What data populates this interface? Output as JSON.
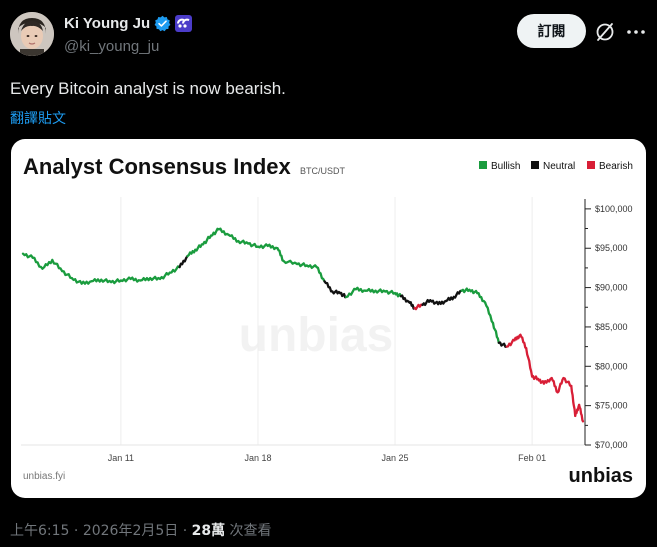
{
  "author": {
    "name": "Ki Young Ju",
    "handle": "@ki_young_ju"
  },
  "actions": {
    "subscribe_label": "訂閱"
  },
  "tweet": {
    "text": "Every Bitcoin analyst is now bearish.",
    "translate_label": "翻譯貼文"
  },
  "meta": {
    "time": "上午6:15",
    "sep1": " · ",
    "date": "2026年2月5日",
    "sep2": " · ",
    "views": "28萬",
    "views_label": " 次查看"
  },
  "colors": {
    "bullish": "#1a9c3e",
    "neutral": "#111111",
    "bearish": "#d81e36",
    "link": "#1d9bf0"
  },
  "chart_data": {
    "type": "line",
    "title": "Analyst Consensus Index",
    "subtitle": "BTC/USDT",
    "watermark": "unbias",
    "source": "unbias.fyi",
    "brand": "unbias",
    "legend": [
      {
        "name": "Bullish",
        "color": "#1a9c3e"
      },
      {
        "name": "Neutral",
        "color": "#111111"
      },
      {
        "name": "Bearish",
        "color": "#d81e36"
      }
    ],
    "y_ticks": [
      100000,
      95000,
      90000,
      85000,
      80000,
      75000,
      70000
    ],
    "y_tick_labels": [
      "$100,000",
      "$95,000",
      "$90,000",
      "$85,000",
      "$80,000",
      "$75,000",
      "$70,000"
    ],
    "ylim": [
      70000,
      101000
    ],
    "x_ticks": [
      "Jan 11",
      "Jan 18",
      "Jan 25",
      "Feb 01"
    ],
    "x_tick_days": [
      11,
      18,
      25,
      32
    ],
    "xlim": [
      5.9,
      34.7
    ],
    "series": [
      {
        "name": "BTC/USDT",
        "points": [
          [
            6.0,
            94300,
            "bullish"
          ],
          [
            6.5,
            93800,
            "bullish"
          ],
          [
            7.0,
            92400,
            "bullish"
          ],
          [
            7.5,
            93500,
            "bullish"
          ],
          [
            8.0,
            92100,
            "bullish"
          ],
          [
            8.5,
            91200,
            "bullish"
          ],
          [
            9.0,
            90500,
            "bullish"
          ],
          [
            9.5,
            90800,
            "bullish"
          ],
          [
            10.0,
            91000,
            "bullish"
          ],
          [
            10.5,
            90700,
            "bullish"
          ],
          [
            11.0,
            90900,
            "bullish"
          ],
          [
            11.5,
            91100,
            "bullish"
          ],
          [
            12.0,
            90900,
            "bullish"
          ],
          [
            12.5,
            91200,
            "bullish"
          ],
          [
            13.0,
            91100,
            "bullish"
          ],
          [
            13.5,
            91900,
            "bullish"
          ],
          [
            14.0,
            92600,
            "neutral"
          ],
          [
            14.4,
            94000,
            "bullish"
          ],
          [
            14.8,
            94800,
            "bullish"
          ],
          [
            15.2,
            95500,
            "bullish"
          ],
          [
            15.6,
            96600,
            "bullish"
          ],
          [
            16.0,
            97400,
            "bullish"
          ],
          [
            16.5,
            96700,
            "bullish"
          ],
          [
            17.0,
            95900,
            "bullish"
          ],
          [
            17.5,
            95600,
            "bullish"
          ],
          [
            18.0,
            95200,
            "bullish"
          ],
          [
            18.5,
            95300,
            "bullish"
          ],
          [
            19.0,
            95000,
            "bullish"
          ],
          [
            19.3,
            93400,
            "bullish"
          ],
          [
            20.0,
            93000,
            "bullish"
          ],
          [
            20.5,
            92800,
            "bullish"
          ],
          [
            21.0,
            92600,
            "bullish"
          ],
          [
            21.4,
            90800,
            "neutral"
          ],
          [
            21.8,
            89500,
            "neutral"
          ],
          [
            22.2,
            89300,
            "neutral"
          ],
          [
            22.5,
            88800,
            "bullish"
          ],
          [
            23.0,
            89800,
            "bullish"
          ],
          [
            23.5,
            89600,
            "bullish"
          ],
          [
            24.0,
            89600,
            "bullish"
          ],
          [
            24.5,
            89500,
            "bullish"
          ],
          [
            25.0,
            89300,
            "bullish"
          ],
          [
            25.3,
            88900,
            "neutral"
          ],
          [
            25.7,
            88200,
            "neutral"
          ],
          [
            26.0,
            87400,
            "bearish"
          ],
          [
            26.4,
            87800,
            "neutral"
          ],
          [
            26.8,
            88400,
            "neutral"
          ],
          [
            27.2,
            87900,
            "neutral"
          ],
          [
            27.6,
            88300,
            "neutral"
          ],
          [
            28.0,
            88800,
            "neutral"
          ],
          [
            28.4,
            89600,
            "bullish"
          ],
          [
            28.8,
            89700,
            "bullish"
          ],
          [
            29.2,
            89300,
            "bullish"
          ],
          [
            29.6,
            88100,
            "bullish"
          ],
          [
            30.0,
            85500,
            "bullish"
          ],
          [
            30.3,
            83000,
            "neutral"
          ],
          [
            30.7,
            82500,
            "bearish"
          ],
          [
            31.1,
            83300,
            "bearish"
          ],
          [
            31.4,
            84000,
            "bearish"
          ],
          [
            31.7,
            82300,
            "bearish"
          ],
          [
            32.0,
            78700,
            "bearish"
          ],
          [
            32.3,
            78400,
            "bearish"
          ],
          [
            32.6,
            77800,
            "bearish"
          ],
          [
            33.0,
            78500,
            "bearish"
          ],
          [
            33.3,
            76700,
            "bearish"
          ],
          [
            33.6,
            78500,
            "bearish"
          ],
          [
            34.0,
            77500,
            "bearish"
          ],
          [
            34.2,
            73700,
            "bearish"
          ],
          [
            34.4,
            75100,
            "bearish"
          ],
          [
            34.6,
            73000,
            "bearish"
          ]
        ]
      }
    ]
  }
}
